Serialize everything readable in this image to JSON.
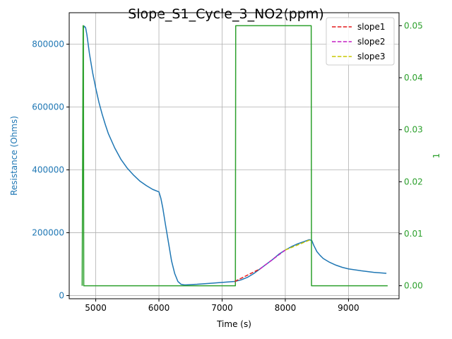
{
  "chart_data": {
    "type": "line",
    "title": "Slope_S1_Cycle_3_NO2(ppm)",
    "xlabel": "Time (s)",
    "ylabel": "Resistance (Ohms)",
    "y2label": "1",
    "xlim": [
      4580,
      9800
    ],
    "ylim": [
      -10000,
      900000
    ],
    "y2lim": [
      -0.0025,
      0.0525
    ],
    "x_ticks": [
      5000,
      6000,
      7000,
      8000,
      9000
    ],
    "y_ticks": [
      0,
      200000,
      400000,
      600000,
      800000
    ],
    "y2_ticks": [
      0.0,
      0.01,
      0.02,
      0.03,
      0.04,
      0.05
    ],
    "x_tick_labels": [
      "5000",
      "6000",
      "7000",
      "8000",
      "9000"
    ],
    "y_tick_labels": [
      "0",
      "200000",
      "400000",
      "600000",
      "800000"
    ],
    "y2_tick_labels": [
      "0.00",
      "0.01",
      "0.02",
      "0.03",
      "0.04",
      "0.05"
    ],
    "grid": true,
    "legend_position": "top-right",
    "colors": {
      "resistance": "#1f77b4",
      "gas": "#2ca02c",
      "slope1": "#e41a1c",
      "slope2": "#c41ec4",
      "slope3": "#c8c800",
      "grid": "#b0b0b0",
      "axis": "#000000"
    },
    "series": [
      {
        "key": "resistance",
        "axis": "left",
        "style": "solid",
        "x": [
          4800,
          4820,
          4840,
          4860,
          4880,
          4900,
          4950,
          5000,
          5050,
          5100,
          5150,
          5200,
          5300,
          5400,
          5500,
          5600,
          5700,
          5800,
          5900,
          6000,
          6030,
          6060,
          6100,
          6150,
          6200,
          6250,
          6300,
          6350,
          6400,
          6430,
          6500,
          6600,
          6800,
          7000,
          7200,
          7300,
          7400,
          7500,
          7600,
          7700,
          7800,
          7900,
          8000,
          8100,
          8200,
          8300,
          8380,
          8420,
          8450,
          8500,
          8550,
          8600,
          8700,
          8800,
          8900,
          9000,
          9200,
          9400,
          9600
        ],
        "y": [
          850000,
          857000,
          852000,
          830000,
          800000,
          770000,
          710000,
          660000,
          615000,
          578000,
          545000,
          515000,
          470000,
          433000,
          405000,
          383000,
          364000,
          350000,
          338000,
          330000,
          310000,
          280000,
          230000,
          170000,
          110000,
          70000,
          45000,
          36000,
          34000,
          34000,
          35000,
          36000,
          39000,
          42000,
          45000,
          50000,
          58000,
          70000,
          85000,
          100000,
          115000,
          132000,
          145000,
          156000,
          165000,
          172000,
          178000,
          175000,
          160000,
          140000,
          128000,
          118000,
          106000,
          97000,
          90000,
          85000,
          79000,
          74000,
          71000
        ]
      },
      {
        "key": "gas",
        "axis": "right",
        "style": "solid",
        "x": [
          4785,
          4800,
          4805,
          4810,
          7210,
          7215,
          8410,
          8415,
          9620
        ],
        "y": [
          0.0,
          0.05,
          0.05,
          0.0,
          0.0,
          0.05,
          0.05,
          0.0,
          0.0
        ]
      },
      {
        "key": "slope1",
        "name": "slope1",
        "axis": "left",
        "style": "dashed",
        "x": [
          7200,
          7600
        ],
        "y": [
          45000,
          85000
        ]
      },
      {
        "key": "slope2",
        "name": "slope2",
        "axis": "left",
        "style": "dashed",
        "x": [
          7600,
          8000
        ],
        "y": [
          85000,
          145000
        ]
      },
      {
        "key": "slope3",
        "name": "slope3",
        "axis": "left",
        "style": "dashed",
        "x": [
          8000,
          8400
        ],
        "y": [
          145000,
          178000
        ]
      }
    ]
  }
}
